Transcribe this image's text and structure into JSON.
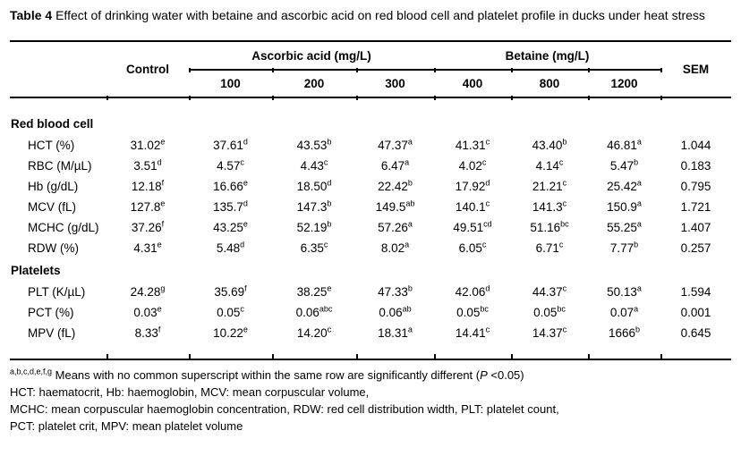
{
  "title": {
    "label": "Table 4",
    "text": "Effect of drinking water with betaine and ascorbic acid on red blood cell and platelet profile in ducks under heat stress"
  },
  "table": {
    "control_header": "Control",
    "sem_header": "SEM",
    "groups": [
      {
        "label": "Ascorbic acid (mg/L)",
        "doses": [
          "100",
          "200",
          "300"
        ]
      },
      {
        "label": "Betaine (mg/L)",
        "doses": [
          "400",
          "800",
          "1200"
        ]
      }
    ],
    "sections": [
      {
        "name": "Red blood cell",
        "rows": [
          {
            "label": "HCT (%)",
            "values": [
              {
                "v": "31.02",
                "sup": "e"
              },
              {
                "v": "37.61",
                "sup": "d"
              },
              {
                "v": "43.53",
                "sup": "b"
              },
              {
                "v": "47.37",
                "sup": "a"
              },
              {
                "v": "41.31",
                "sup": "c"
              },
              {
                "v": "43.40",
                "sup": "b"
              },
              {
                "v": "46.81",
                "sup": "a"
              }
            ],
            "sem": "1.044"
          },
          {
            "label": "RBC (M/µL)",
            "values": [
              {
                "v": "3.51",
                "sup": "d"
              },
              {
                "v": "4.57",
                "sup": "c"
              },
              {
                "v": "4.43",
                "sup": "c"
              },
              {
                "v": "6.47",
                "sup": "a"
              },
              {
                "v": "4.02",
                "sup": "c"
              },
              {
                "v": "4.14",
                "sup": "c"
              },
              {
                "v": "5.47",
                "sup": "b"
              }
            ],
            "sem": "0.183"
          },
          {
            "label": "Hb (g/dL)",
            "values": [
              {
                "v": "12.18",
                "sup": "f"
              },
              {
                "v": "16.66",
                "sup": "e"
              },
              {
                "v": "18.50",
                "sup": "d"
              },
              {
                "v": "22.42",
                "sup": "b"
              },
              {
                "v": "17.92",
                "sup": "d"
              },
              {
                "v": "21.21",
                "sup": "c"
              },
              {
                "v": "25.42",
                "sup": "a"
              }
            ],
            "sem": "0.795"
          },
          {
            "label": "MCV (fL)",
            "values": [
              {
                "v": "127.8",
                "sup": "e"
              },
              {
                "v": "135.7",
                "sup": "d"
              },
              {
                "v": "147.3",
                "sup": "b"
              },
              {
                "v": "149.5",
                "sup": "ab"
              },
              {
                "v": "140.1",
                "sup": "c"
              },
              {
                "v": "141.3",
                "sup": "c"
              },
              {
                "v": "150.9",
                "sup": "a"
              }
            ],
            "sem": "1.721"
          },
          {
            "label": "MCHC (g/dL)",
            "values": [
              {
                "v": "37.26",
                "sup": "f"
              },
              {
                "v": "43.25",
                "sup": "e"
              },
              {
                "v": "52.19",
                "sup": "b"
              },
              {
                "v": "57.26",
                "sup": "a"
              },
              {
                "v": "49.51",
                "sup": "cd"
              },
              {
                "v": "51.16",
                "sup": "bc"
              },
              {
                "v": "55.25",
                "sup": "a"
              }
            ],
            "sem": "1.407"
          },
          {
            "label": "RDW (%)",
            "values": [
              {
                "v": "4.31",
                "sup": "e"
              },
              {
                "v": "5.48",
                "sup": "d"
              },
              {
                "v": "6.35",
                "sup": "c"
              },
              {
                "v": "8.02",
                "sup": "a"
              },
              {
                "v": "6.05",
                "sup": "c"
              },
              {
                "v": "6.71",
                "sup": "c"
              },
              {
                "v": "7.77",
                "sup": "b"
              }
            ],
            "sem": "0.257"
          }
        ]
      },
      {
        "name": "Platelets",
        "rows": [
          {
            "label": "PLT (K/µL)",
            "values": [
              {
                "v": "24.28",
                "sup": "g"
              },
              {
                "v": "35.69",
                "sup": "f"
              },
              {
                "v": "38.25",
                "sup": "e"
              },
              {
                "v": "47.33",
                "sup": "b"
              },
              {
                "v": "42.06",
                "sup": "d"
              },
              {
                "v": "44.37",
                "sup": "c"
              },
              {
                "v": "50.13",
                "sup": "a"
              }
            ],
            "sem": "1.594"
          },
          {
            "label": "PCT (%)",
            "values": [
              {
                "v": "0.03",
                "sup": "e"
              },
              {
                "v": "0.05",
                "sup": "c"
              },
              {
                "v": "0.06",
                "sup": "abc"
              },
              {
                "v": "0.06",
                "sup": "ab"
              },
              {
                "v": "0.05",
                "sup": "bc"
              },
              {
                "v": "0.05",
                "sup": "bc"
              },
              {
                "v": "0.07",
                "sup": "a"
              }
            ],
            "sem": "0.001"
          },
          {
            "label": "MPV (fL)",
            "values": [
              {
                "v": "8.33",
                "sup": "f"
              },
              {
                "v": "10.22",
                "sup": "e"
              },
              {
                "v": "14.20",
                "sup": "c"
              },
              {
                "v": "18.31",
                "sup": "a"
              },
              {
                "v": "14.41",
                "sup": "c"
              },
              {
                "v": "14.37",
                "sup": "c"
              },
              {
                "v": "1666",
                "sup": "b"
              }
            ],
            "sem": "0.645"
          }
        ]
      }
    ]
  },
  "footnotes": {
    "significance": {
      "sup": "a,b,c,d,e,f,g",
      "pre": " Means with no common superscript within the same row are significantly different (",
      "italic": "P",
      "post": " <0.05)"
    },
    "lines": [
      "HCT: haematocrit, Hb: haemoglobin, MCV: mean corpuscular volume,",
      "MCHC: mean corpuscular haemoglobin concentration, RDW: red cell distribution width, PLT: platelet count,",
      "PCT: platelet crit, MPV: mean platelet volume"
    ]
  }
}
